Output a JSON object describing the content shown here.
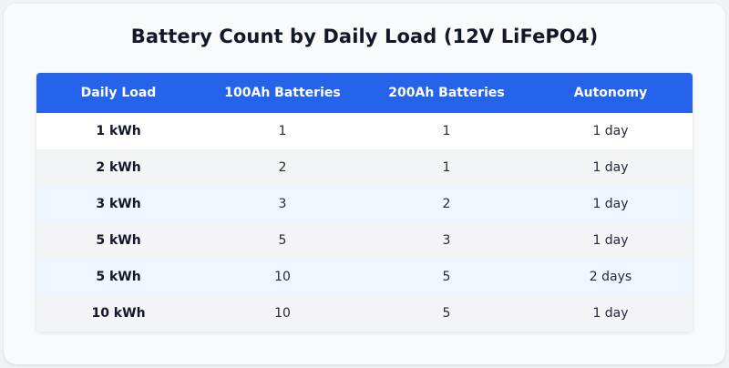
{
  "title": "Battery Count by Daily Load (12V LiFePO4)",
  "table": {
    "headers": [
      "Daily Load",
      "100Ah Batteries",
      "200Ah Batteries",
      "Autonomy"
    ],
    "rows": [
      [
        "1 kWh",
        "1",
        "1",
        "1 day"
      ],
      [
        "2 kWh",
        "2",
        "1",
        "1 day"
      ],
      [
        "3 kWh",
        "3",
        "2",
        "1 day"
      ],
      [
        "5 kWh",
        "5",
        "3",
        "1 day"
      ],
      [
        "5 kWh",
        "10",
        "5",
        "2 days"
      ],
      [
        "10 kWh",
        "10",
        "5",
        "1 day"
      ]
    ]
  },
  "colors": {
    "header": "#2563eb",
    "row_white": "#ffffff",
    "row_gray": "#f3f4f6",
    "row_blue": "#eff6ff"
  }
}
